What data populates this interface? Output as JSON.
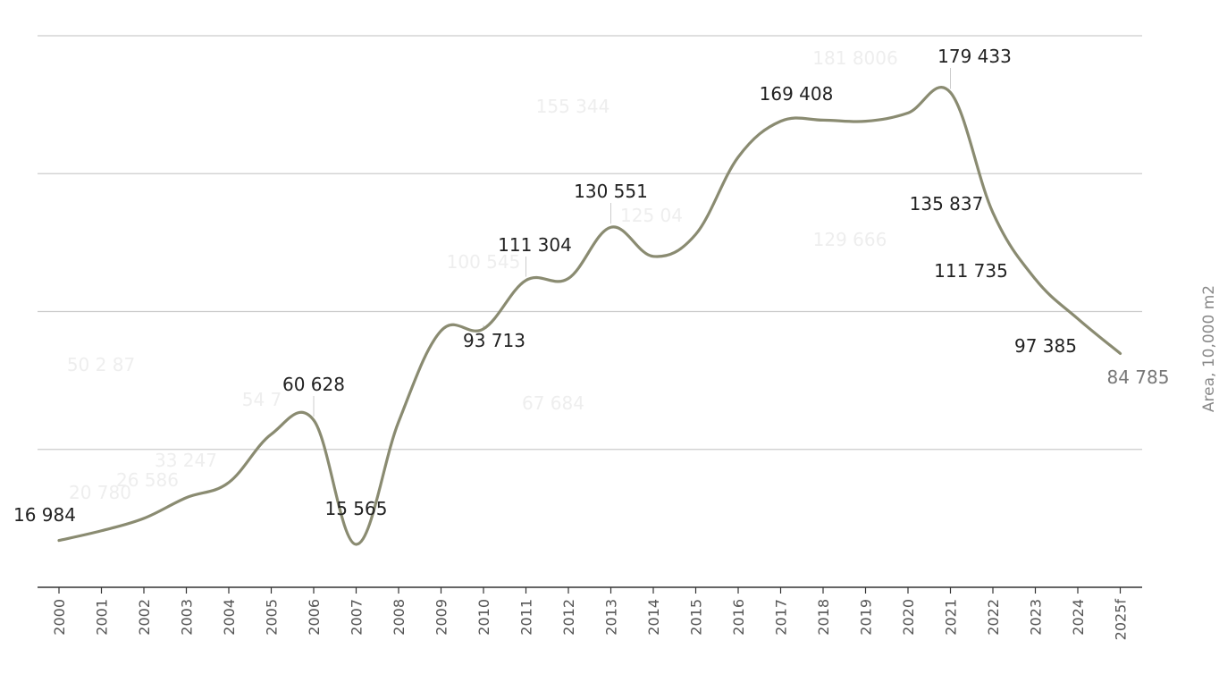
{
  "chart_data": {
    "type": "line",
    "ylabel": "Area, 10,000 m2",
    "ylim": [
      0,
      200000
    ],
    "grid": true,
    "x": [
      "2000",
      "2001",
      "2002",
      "2003",
      "2004",
      "2005",
      "2006",
      "2007",
      "2008",
      "2009",
      "2010",
      "2011",
      "2012",
      "2013",
      "2014",
      "2015",
      "2016",
      "2017",
      "2018",
      "2019",
      "2020",
      "2021",
      "2022",
      "2023",
      "2024",
      "2025f"
    ],
    "series": [
      {
        "color": "#8a8b71",
        "values": [
          16984,
          20500,
          25000,
          32500,
          38000,
          55500,
          60628,
          15565,
          60000,
          93000,
          93713,
          111304,
          112000,
          130551,
          120000,
          128000,
          156000,
          169000,
          169408,
          169000,
          172000,
          179433,
          135837,
          111735,
          97385,
          84785
        ],
        "labels": [
          "16 984",
          "",
          "",
          "",
          "",
          "",
          "60 628",
          "15 565",
          "",
          "",
          "93 713",
          "111 304",
          "",
          "130 551",
          "",
          "",
          "",
          "",
          "169 408",
          "",
          "",
          "179 433",
          "135 837",
          "111 735",
          "97 385",
          "84 785"
        ]
      }
    ],
    "ghost_labels": [
      "20 780",
      "26 586",
      "33 247",
      "50 2 87",
      "54 7",
      "67 684",
      "100 545",
      "155 344",
      "125 04",
      "129 666",
      "181 8006"
    ]
  }
}
